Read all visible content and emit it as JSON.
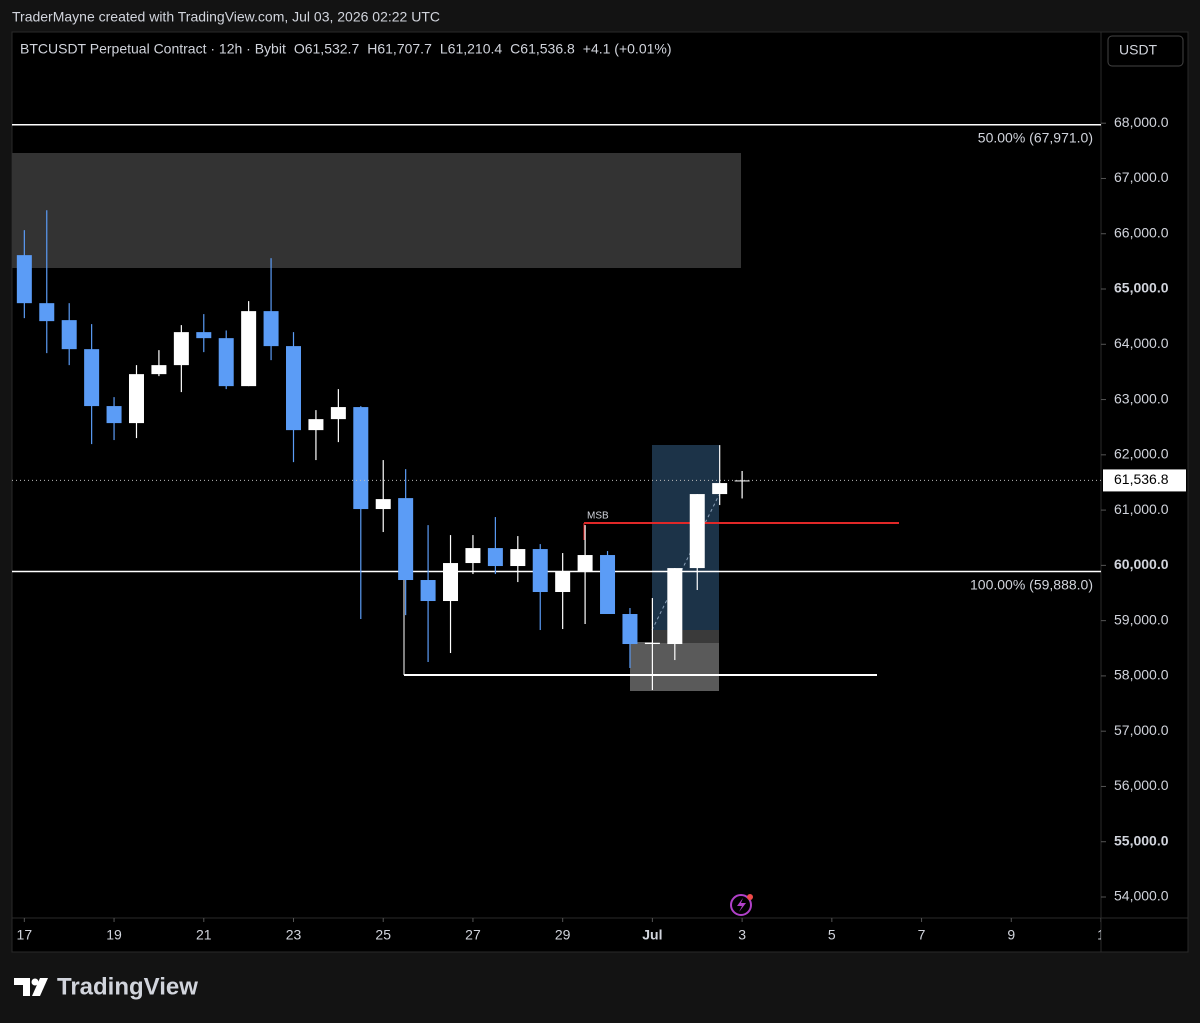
{
  "header": {
    "credit": "TraderMayne created with TradingView.com, Jul 03, 2026 02:22 UTC"
  },
  "chart_data": {
    "type": "candlestick",
    "title": "BTCUSDT Perpetual Contract · 12h · Bybit",
    "legend_values": [
      {
        "label": "O",
        "text": "61,532.7"
      },
      {
        "label": "H",
        "text": "61,707.7"
      },
      {
        "label": "L",
        "text": "61,210.4"
      },
      {
        "label": "C",
        "text": "61,536.8"
      }
    ],
    "change": "+4.1 (+0.01%)",
    "currency_button": "USDT",
    "categories": [
      null,
      null,
      null,
      null,
      null,
      null,
      null,
      null,
      null,
      null,
      null,
      null,
      null,
      null,
      null,
      null,
      null,
      null,
      null,
      null,
      null,
      null,
      null,
      null,
      null,
      null,
      null,
      null,
      null,
      null,
      null,
      null,
      null
    ],
    "open": [
      65613,
      64744,
      64437,
      63912,
      62882,
      62574,
      63460,
      63623,
      64220,
      64111,
      63243,
      64600,
      63967,
      62447,
      62646,
      62864,
      61019,
      61217,
      59735,
      59355,
      60042,
      60313,
      59988,
      60295,
      59518,
      59897,
      60187,
      59120,
      58577,
      58577,
      59951,
      61290,
      61532.7
    ],
    "high": [
      66065,
      66426,
      64744,
      64365,
      63044,
      63623,
      63894,
      64347,
      64546,
      64250,
      64781,
      65558,
      64220,
      62809,
      63189,
      62882,
      61905,
      61742,
      60729,
      60548,
      60548,
      60874,
      60530,
      60385,
      60223,
      60729,
      60259,
      59228,
      59409,
      59951,
      61290,
      62176,
      61707.7
    ],
    "low": [
      64473,
      63840,
      63623,
      62194,
      62267,
      62303,
      63424,
      63135,
      63858,
      63189,
      63243,
      63713,
      61869,
      61905,
      62230,
      59029,
      60603,
      59100,
      58251,
      58414,
      59843,
      59843,
      59698,
      58830,
      58848,
      58939,
      59120,
      58143,
      57745,
      58287,
      59554,
      61091,
      61210.4
    ],
    "close": [
      64744,
      64419,
      63912,
      62882,
      62574,
      63460,
      63623,
      64220,
      64111,
      63243,
      64600,
      63967,
      62447,
      62646,
      62864,
      61019,
      61199,
      59735,
      59355,
      60042,
      60313,
      59988,
      60295,
      59518,
      59897,
      60187,
      59120,
      58577,
      58600,
      59951,
      61290,
      61489,
      61536.8
    ],
    "up_color": "#ffffff",
    "down_color": "#5b9cf6",
    "xlim": [
      -0.55,
      48
    ],
    "xticks": [
      {
        "value": 0,
        "label": "17"
      },
      {
        "value": 4,
        "label": "19"
      },
      {
        "value": 8,
        "label": "21"
      },
      {
        "value": 12,
        "label": "23"
      },
      {
        "value": 16,
        "label": "25"
      },
      {
        "value": 20,
        "label": "27"
      },
      {
        "value": 24,
        "label": "29"
      },
      {
        "value": 28,
        "label": "Jul"
      },
      {
        "value": 32,
        "label": "3"
      },
      {
        "value": 36,
        "label": "5"
      },
      {
        "value": 40,
        "label": "7"
      },
      {
        "value": 44,
        "label": "9"
      },
      {
        "value": 48,
        "label": "1"
      }
    ],
    "ylim": [
      53620,
      69650
    ],
    "yticks": [
      {
        "value": 54000,
        "label": "54,000.0"
      },
      {
        "value": 55000,
        "label": "55,000.0"
      },
      {
        "value": 56000,
        "label": "56,000.0"
      },
      {
        "value": 57000,
        "label": "57,000.0"
      },
      {
        "value": 58000,
        "label": "58,000.0"
      },
      {
        "value": 59000,
        "label": "59,000.0"
      },
      {
        "value": 60000,
        "label": "60,000.0"
      },
      {
        "value": 61000,
        "label": "61,000.0"
      },
      {
        "value": 62000,
        "label": "62,000.0"
      },
      {
        "value": 63000,
        "label": "63,000.0"
      },
      {
        "value": 64000,
        "label": "64,000.0"
      },
      {
        "value": 65000,
        "label": "65,000.0"
      },
      {
        "value": 66000,
        "label": "66,000.0"
      },
      {
        "value": 67000,
        "label": "67,000.0"
      },
      {
        "value": 68000,
        "label": "68,000.0"
      }
    ],
    "last_price": {
      "value": 61536.8,
      "label": "61,536.8"
    },
    "fib_levels": [
      {
        "value": 67971,
        "label": "50.00% (67,971.0)"
      },
      {
        "value": 59888,
        "label": "100.00% (59,888.0)"
      }
    ],
    "annotation": "MSB"
  },
  "footer": {
    "logo": "TradingView"
  }
}
